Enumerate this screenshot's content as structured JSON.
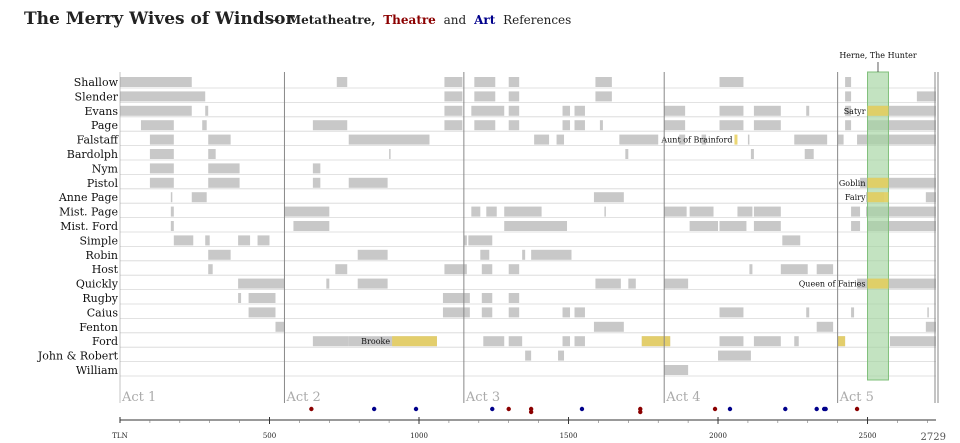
{
  "title": "The Merry Wives of Windsor",
  "subtitle": {
    "dash": "—",
    "part1": "Metatheatre,",
    "part2": "Theatre",
    "part3": "and",
    "part4": "Art",
    "part5": "References"
  },
  "colors": {
    "speech": "#c8c8c8",
    "disguise": "#e8cf5c",
    "herne_band": "#a3d4a0",
    "theatre": "#8b0000",
    "art": "#00008b",
    "act_line": "#888888"
  },
  "chart_data": {
    "type": "timeline",
    "x_axis": {
      "label": "TLN",
      "min": 0,
      "max": 2729,
      "ticks": [
        500,
        1000,
        1500,
        2000,
        2500
      ],
      "max_label": "2729"
    },
    "acts": [
      {
        "label": "Act 1",
        "start": 0
      },
      {
        "label": "Act 2",
        "start": 550
      },
      {
        "label": "Act 3",
        "start": 1150
      },
      {
        "label": "Act 4",
        "start": 1820
      },
      {
        "label": "Act 5",
        "start": 2400
      }
    ],
    "herne": {
      "label": "Herne, The Hunter",
      "start": 2500,
      "end": 2570
    },
    "roles": [
      {
        "name": "Shallow",
        "segments": [
          [
            0,
            240
          ],
          [
            725,
            760
          ],
          [
            1085,
            1145
          ],
          [
            1185,
            1255
          ],
          [
            1300,
            1335
          ],
          [
            1590,
            1645
          ],
          [
            2005,
            2085
          ],
          [
            2425,
            2445
          ]
        ]
      },
      {
        "name": "Slender",
        "segments": [
          [
            0,
            285
          ],
          [
            1085,
            1145
          ],
          [
            1185,
            1255
          ],
          [
            1300,
            1335
          ],
          [
            1590,
            1645
          ],
          [
            2425,
            2445
          ],
          [
            2665,
            2729
          ]
        ]
      },
      {
        "name": "Evans",
        "segments": [
          [
            0,
            240
          ],
          [
            285,
            295
          ],
          [
            1085,
            1145
          ],
          [
            1175,
            1285
          ],
          [
            1300,
            1335
          ],
          [
            1480,
            1505
          ],
          [
            1520,
            1555
          ],
          [
            1820,
            1890
          ],
          [
            2005,
            2085
          ],
          [
            2120,
            2210
          ],
          [
            2295,
            2305
          ],
          [
            2425,
            2445
          ],
          [
            2500,
            2729
          ]
        ]
      },
      {
        "name": "Page",
        "segments": [
          [
            70,
            180
          ],
          [
            275,
            290
          ],
          [
            645,
            760
          ],
          [
            1085,
            1145
          ],
          [
            1185,
            1255
          ],
          [
            1300,
            1335
          ],
          [
            1480,
            1505
          ],
          [
            1520,
            1555
          ],
          [
            1605,
            1615
          ],
          [
            1820,
            1890
          ],
          [
            2005,
            2085
          ],
          [
            2120,
            2210
          ],
          [
            2425,
            2445
          ],
          [
            2500,
            2729
          ]
        ]
      },
      {
        "name": "Falstaff",
        "segments": [
          [
            100,
            180
          ],
          [
            295,
            370
          ],
          [
            765,
            1035
          ],
          [
            1385,
            1435
          ],
          [
            1460,
            1485
          ],
          [
            1670,
            1800
          ],
          [
            1870,
            1890
          ],
          [
            1945,
            1960
          ],
          [
            2100,
            2105
          ],
          [
            2255,
            2365
          ],
          [
            2400,
            2420
          ],
          [
            2465,
            2729
          ]
        ]
      },
      {
        "name": "Bardolph",
        "segments": [
          [
            100,
            180
          ],
          [
            295,
            320
          ],
          [
            900,
            905
          ],
          [
            1690,
            1700
          ],
          [
            2110,
            2120
          ],
          [
            2290,
            2320
          ]
        ]
      },
      {
        "name": "Nym",
        "segments": [
          [
            100,
            180
          ],
          [
            295,
            400
          ],
          [
            645,
            670
          ]
        ]
      },
      {
        "name": "Pistol",
        "segments": [
          [
            100,
            180
          ],
          [
            295,
            400
          ],
          [
            645,
            670
          ],
          [
            765,
            895
          ],
          [
            2475,
            2729
          ]
        ]
      },
      {
        "name": "Anne Page",
        "segments": [
          [
            170,
            175
          ],
          [
            240,
            290
          ],
          [
            1585,
            1685
          ],
          [
            2495,
            2555
          ],
          [
            2695,
            2729
          ]
        ]
      },
      {
        "name": "Mist. Page",
        "segments": [
          [
            170,
            180
          ],
          [
            550,
            700
          ],
          [
            1175,
            1205
          ],
          [
            1225,
            1260
          ],
          [
            1285,
            1410
          ],
          [
            1620,
            1625
          ],
          [
            1820,
            1895
          ],
          [
            1905,
            1985
          ],
          [
            2065,
            2115
          ],
          [
            2120,
            2210
          ],
          [
            2445,
            2475
          ],
          [
            2495,
            2729
          ]
        ]
      },
      {
        "name": "Mist. Ford",
        "segments": [
          [
            170,
            180
          ],
          [
            580,
            700
          ],
          [
            1285,
            1495
          ],
          [
            1905,
            2000
          ],
          [
            2005,
            2095
          ],
          [
            2120,
            2210
          ],
          [
            2445,
            2475
          ],
          [
            2500,
            2729
          ]
        ]
      },
      {
        "name": "Simple",
        "segments": [
          [
            180,
            245
          ],
          [
            285,
            300
          ],
          [
            395,
            435
          ],
          [
            460,
            500
          ],
          [
            1150,
            1160
          ],
          [
            1165,
            1245
          ],
          [
            2215,
            2275
          ]
        ]
      },
      {
        "name": "Robin",
        "segments": [
          [
            295,
            370
          ],
          [
            795,
            895
          ],
          [
            1205,
            1235
          ],
          [
            1345,
            1355
          ],
          [
            1375,
            1510
          ]
        ]
      },
      {
        "name": "Host",
        "segments": [
          [
            295,
            310
          ],
          [
            720,
            760
          ],
          [
            1085,
            1160
          ],
          [
            1210,
            1245
          ],
          [
            1300,
            1335
          ],
          [
            2105,
            2115
          ],
          [
            2210,
            2300
          ],
          [
            2330,
            2385
          ]
        ]
      },
      {
        "name": "Quickly",
        "segments": [
          [
            395,
            550
          ],
          [
            690,
            700
          ],
          [
            795,
            895
          ],
          [
            1590,
            1675
          ],
          [
            1700,
            1725
          ],
          [
            1820,
            1900
          ],
          [
            2465,
            2729
          ]
        ]
      },
      {
        "name": "Rugby",
        "segments": [
          [
            395,
            405
          ],
          [
            430,
            520
          ],
          [
            1080,
            1170
          ],
          [
            1210,
            1245
          ],
          [
            1300,
            1335
          ]
        ]
      },
      {
        "name": "Caius",
        "segments": [
          [
            430,
            520
          ],
          [
            1080,
            1170
          ],
          [
            1210,
            1245
          ],
          [
            1300,
            1335
          ],
          [
            1480,
            1505
          ],
          [
            1520,
            1555
          ],
          [
            2005,
            2085
          ],
          [
            2295,
            2305
          ],
          [
            2445,
            2455
          ],
          [
            2700,
            2705
          ]
        ]
      },
      {
        "name": "Fenton",
        "segments": [
          [
            520,
            550
          ],
          [
            1585,
            1685
          ],
          [
            2330,
            2385
          ],
          [
            2695,
            2729
          ]
        ]
      },
      {
        "name": "Ford",
        "segments": [
          [
            645,
            765
          ],
          [
            765,
            910
          ],
          [
            910,
            1060
          ],
          [
            1215,
            1285
          ],
          [
            1300,
            1345
          ],
          [
            1480,
            1505
          ],
          [
            1520,
            1555
          ],
          [
            1745,
            1840
          ],
          [
            2005,
            2085
          ],
          [
            2120,
            2210
          ],
          [
            2255,
            2270
          ],
          [
            2400,
            2425
          ],
          [
            2575,
            2729
          ]
        ]
      },
      {
        "name": "John & Robert",
        "segments": [
          [
            1355,
            1375
          ],
          [
            1465,
            1485
          ],
          [
            2000,
            2110
          ]
        ]
      },
      {
        "name": "William",
        "segments": [
          [
            1820,
            1900
          ]
        ]
      }
    ],
    "disguises": [
      {
        "role": "Evans",
        "label": "Satyr",
        "start": 2500,
        "end": 2570
      },
      {
        "role": "Falstaff",
        "label": "Aunt of Brainford",
        "start": 2055,
        "end": 2065
      },
      {
        "role": "Pistol",
        "label": "Goblin",
        "start": 2500,
        "end": 2570
      },
      {
        "role": "Anne Page",
        "label": "Fairy",
        "start": 2500,
        "end": 2570
      },
      {
        "role": "Quickly",
        "label": "Queen of Fairies",
        "start": 2500,
        "end": 2570
      },
      {
        "role": "Ford",
        "label": "Brooke",
        "start": 910,
        "end": 1060
      },
      {
        "role": "Ford",
        "label": "",
        "start": 1745,
        "end": 1840
      },
      {
        "role": "Ford",
        "label": "",
        "start": 2400,
        "end": 2425
      }
    ],
    "theatre_refs": [
      640,
      1300,
      1375,
      1375,
      1740,
      1740,
      1990,
      2465
    ],
    "art_refs": [
      850,
      990,
      1245,
      1545,
      2040,
      2225,
      2330,
      2355,
      2360
    ]
  }
}
